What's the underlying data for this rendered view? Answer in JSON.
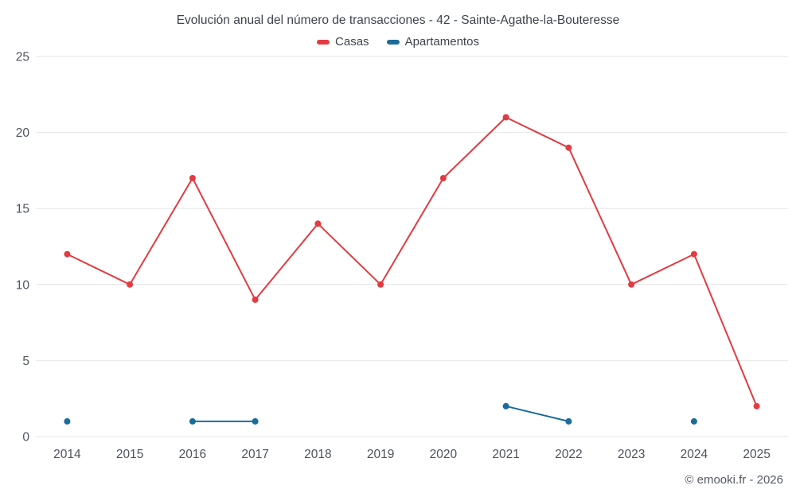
{
  "chart_data": {
    "type": "line",
    "title": "Evolución anual del número de transacciones - 42 - Sainte-Agathe-la-Bouteresse",
    "categories": [
      "2014",
      "2015",
      "2016",
      "2017",
      "2018",
      "2019",
      "2020",
      "2021",
      "2022",
      "2023",
      "2024",
      "2025"
    ],
    "series": [
      {
        "name": "Casas",
        "color": "#e23b41",
        "values": [
          12,
          10,
          17,
          9,
          14,
          10,
          17,
          21,
          19,
          10,
          12,
          2
        ]
      },
      {
        "name": "Apartamentos",
        "color": "#1a6d9a",
        "values": [
          1,
          null,
          1,
          1,
          null,
          null,
          null,
          2,
          1,
          null,
          1,
          null
        ]
      }
    ],
    "xlabel": "",
    "ylabel": "",
    "ylim": [
      0,
      25
    ],
    "yticks": [
      0,
      5,
      10,
      15,
      20,
      25
    ],
    "grid": true,
    "legend_position": "top"
  },
  "copyright": "© emooki.fr - 2026",
  "colors": {
    "grid": "#e6e6e6",
    "axis_text": "#4d535c",
    "title_text": "#3d434d",
    "background": "#ffffff"
  }
}
